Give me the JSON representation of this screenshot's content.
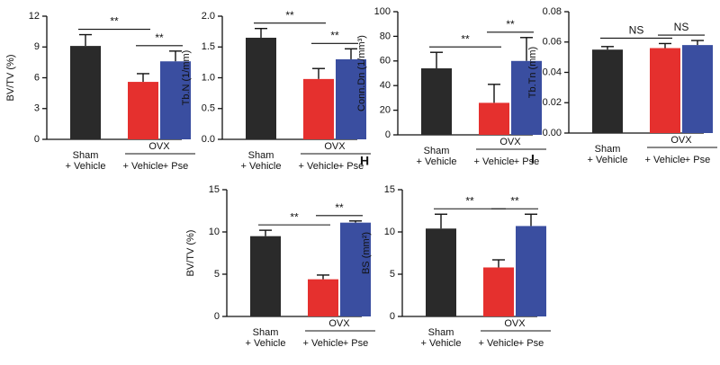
{
  "chart_data": [
    {
      "type": "bar",
      "ylabel": "BV/TV (%)",
      "categories": [
        "+ Vehicle",
        "+ Vehicle",
        "+ Pse"
      ],
      "groups": [
        {
          "name": "Sham",
          "categories": [
            0
          ]
        },
        {
          "name": "OVX",
          "categories": [
            1,
            2
          ]
        }
      ],
      "values": [
        9.1,
        5.6,
        7.6
      ],
      "errors": [
        1.1,
        0.8,
        1.0
      ],
      "colors": [
        "#2a2a2a",
        "#e5302e",
        "#3a4ea0"
      ],
      "ylim": [
        0,
        12
      ],
      "yticks": [
        0,
        3,
        6,
        9,
        12
      ],
      "comparisons": [
        {
          "label": "**",
          "from": 0,
          "to": 1
        },
        {
          "label": "**",
          "from": 1,
          "to": 2
        }
      ]
    },
    {
      "type": "bar",
      "ylabel": "Tb.N (1/mm)",
      "categories": [
        "+ Vehicle",
        "+ Vehicle",
        "+ Pse"
      ],
      "groups": [
        {
          "name": "Sham",
          "categories": [
            0
          ]
        },
        {
          "name": "OVX",
          "categories": [
            1,
            2
          ]
        }
      ],
      "values": [
        1.65,
        0.98,
        1.3
      ],
      "errors": [
        0.15,
        0.17,
        0.17
      ],
      "colors": [
        "#2a2a2a",
        "#e5302e",
        "#3a4ea0"
      ],
      "ylim": [
        0,
        2
      ],
      "yticks": [
        {
          "value": 0,
          "label": "0.0"
        },
        0.5,
        {
          "value": 1,
          "label": "1.0"
        },
        1.5,
        {
          "value": 2,
          "label": "2.0"
        }
      ],
      "comparisons": [
        {
          "label": "**",
          "from": 0,
          "to": 1
        },
        {
          "label": "**",
          "from": 1,
          "to": 2
        }
      ]
    },
    {
      "type": "bar",
      "ylabel": "Conn.Dn (1/mm³)",
      "panel_label": "H",
      "categories": [
        "+ Vehicle",
        "+ Vehicle",
        "+ Pse"
      ],
      "groups": [
        {
          "name": "Sham",
          "categories": [
            0
          ]
        },
        {
          "name": "OVX",
          "categories": [
            1,
            2
          ]
        }
      ],
      "values": [
        54,
        26,
        60
      ],
      "errors": [
        13,
        15,
        19
      ],
      "colors": [
        "#2a2a2a",
        "#e5302e",
        "#3a4ea0"
      ],
      "ylim": [
        0,
        100
      ],
      "yticks": [
        0,
        20,
        40,
        60,
        80,
        100
      ],
      "comparisons": [
        {
          "label": "**",
          "from": 0,
          "to": 1
        },
        {
          "label": "**",
          "from": 1,
          "to": 2
        }
      ]
    },
    {
      "type": "bar",
      "ylabel": "Tb.Tn (mm)",
      "panel_label": "I",
      "categories": [
        "+ Vehicle",
        "+ Vehicle",
        "+ Pse"
      ],
      "groups": [
        {
          "name": "Sham",
          "categories": [
            0
          ]
        },
        {
          "name": "OVX",
          "categories": [
            1,
            2
          ]
        }
      ],
      "values": [
        0.055,
        0.056,
        0.058
      ],
      "errors": [
        0.002,
        0.003,
        0.003
      ],
      "colors": [
        "#2a2a2a",
        "#e5302e",
        "#3a4ea0"
      ],
      "ylim": [
        0,
        0.08
      ],
      "yticks": [
        {
          "value": 0,
          "label": "0.00"
        },
        {
          "value": 0.02,
          "label": "0.02"
        },
        {
          "value": 0.04,
          "label": "0.04"
        },
        {
          "value": 0.06,
          "label": "0.06"
        },
        {
          "value": 0.08,
          "label": "0.08"
        }
      ],
      "comparisons": [
        {
          "label": "NS",
          "from": 0,
          "to": 1
        },
        {
          "label": "NS",
          "from": 1,
          "to": 2
        }
      ]
    },
    {
      "type": "bar",
      "ylabel": "BV/TV (%)",
      "categories": [
        "+ Vehicle",
        "+ Vehicle",
        "+ Pse"
      ],
      "groups": [
        {
          "name": "Sham",
          "categories": [
            0
          ]
        },
        {
          "name": "OVX",
          "categories": [
            1,
            2
          ]
        }
      ],
      "values": [
        9.5,
        4.4,
        11.1
      ],
      "errors": [
        0.7,
        0.5,
        0.2
      ],
      "colors": [
        "#2a2a2a",
        "#e5302e",
        "#3a4ea0"
      ],
      "ylim": [
        0,
        15
      ],
      "yticks": [
        0,
        5,
        10,
        15
      ],
      "comparisons": [
        {
          "label": "**",
          "from": 0,
          "to": 1
        },
        {
          "label": "**",
          "from": 1,
          "to": 2
        }
      ]
    },
    {
      "type": "bar",
      "ylabel": "BS (mm²)",
      "categories": [
        "+ Vehicle",
        "+ Vehicle",
        "+ Pse"
      ],
      "groups": [
        {
          "name": "Sham",
          "categories": [
            0
          ]
        },
        {
          "name": "OVX",
          "categories": [
            1,
            2
          ]
        }
      ],
      "values": [
        10.4,
        5.8,
        10.7
      ],
      "errors": [
        1.7,
        0.9,
        1.4
      ],
      "colors": [
        "#2a2a2a",
        "#e5302e",
        "#3a4ea0"
      ],
      "ylim": [
        0,
        15
      ],
      "yticks": [
        0,
        5,
        10,
        15
      ],
      "comparisons": [
        {
          "label": "**",
          "from": 0,
          "to": 1
        },
        {
          "label": "**",
          "from": 1,
          "to": 2
        }
      ]
    }
  ]
}
